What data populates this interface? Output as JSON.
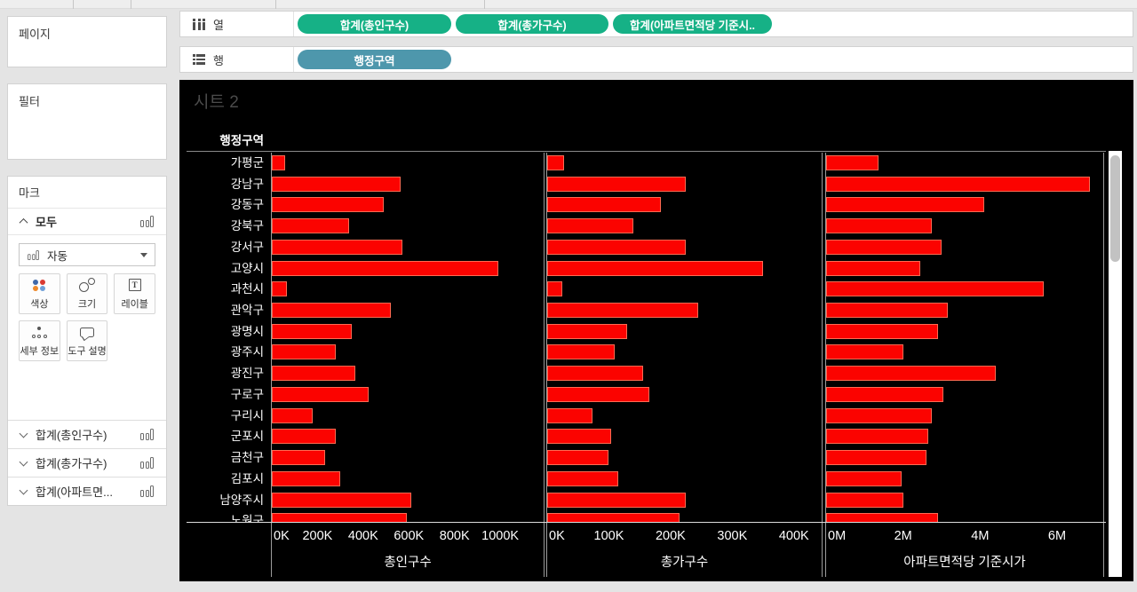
{
  "left_panel": {
    "pages_label": "페이지",
    "filter_label": "필터",
    "marks": {
      "title": "마크",
      "all_row_label": "모두",
      "dropdown_value": "자동",
      "buttons": [
        {
          "name": "color",
          "label": "색상"
        },
        {
          "name": "size",
          "label": "크기"
        },
        {
          "name": "label",
          "label": "레이블"
        },
        {
          "name": "detail",
          "label": "세부 정보"
        },
        {
          "name": "tooltip",
          "label": "도구 설명"
        }
      ],
      "label_icon_char": "T"
    },
    "fields": [
      {
        "label": "합계(총인구수)"
      },
      {
        "label": "합계(총가구수)"
      },
      {
        "label": "합계(아파트면..."
      }
    ]
  },
  "shelves": {
    "columns_label": "열",
    "rows_label": "행",
    "column_pills": [
      "합계(총인구수)",
      "합계(총가구수)",
      "합계(아파트면적당 기준시.."
    ],
    "row_pills": [
      "행정구역"
    ]
  },
  "sheet": {
    "title": "시트 2",
    "row_header": "행정구역"
  },
  "colors": {
    "pill_green": "#16b186",
    "pill_blue": "#4e97ac",
    "bar_red": "#fb0300"
  },
  "chart_data": {
    "type": "bar",
    "orientation": "horizontal",
    "title": "시트 2",
    "row_dimension": "행정구역",
    "bar_color": "#fb0300",
    "categories": [
      "가평군",
      "강남구",
      "강동구",
      "강북구",
      "강서구",
      "고양시",
      "과천시",
      "관악구",
      "광명시",
      "광주시",
      "광진구",
      "구로구",
      "구리시",
      "군포시",
      "금천구",
      "김포시",
      "남양주시",
      "노원구"
    ],
    "series": [
      {
        "name": "총인구수",
        "unit": "K",
        "xmax": 1190,
        "tick_values": [
          0,
          200,
          400,
          600,
          800,
          1000
        ],
        "tick_labels": [
          "0K",
          "200K",
          "400K",
          "600K",
          "800K",
          "1000K"
        ],
        "values": [
          60,
          565,
          490,
          340,
          570,
          990,
          65,
          520,
          350,
          280,
          365,
          425,
          180,
          280,
          235,
          300,
          610,
          590
        ]
      },
      {
        "name": "총가구수",
        "unit": "K",
        "xmax": 445,
        "tick_values": [
          0,
          100,
          200,
          300,
          400
        ],
        "tick_labels": [
          "0K",
          "100K",
          "200K",
          "300K",
          "400K"
        ],
        "values": [
          27,
          225,
          185,
          140,
          225,
          350,
          25,
          245,
          130,
          110,
          155,
          165,
          73,
          103,
          100,
          115,
          225,
          215
        ]
      },
      {
        "name": "아파트면적당 기준시가",
        "unit": "M",
        "xmax": 7.2,
        "tick_values": [
          0,
          2,
          4,
          6
        ],
        "tick_labels": [
          "0M",
          "2M",
          "4M",
          "6M"
        ],
        "values": [
          1.35,
          6.85,
          4.1,
          2.75,
          3.0,
          2.45,
          5.65,
          3.15,
          2.9,
          2.0,
          4.4,
          3.05,
          2.75,
          2.65,
          2.6,
          1.95,
          2.0,
          2.9
        ]
      }
    ],
    "legend": false,
    "grid": false,
    "note_last_row_partially_visible": true
  }
}
